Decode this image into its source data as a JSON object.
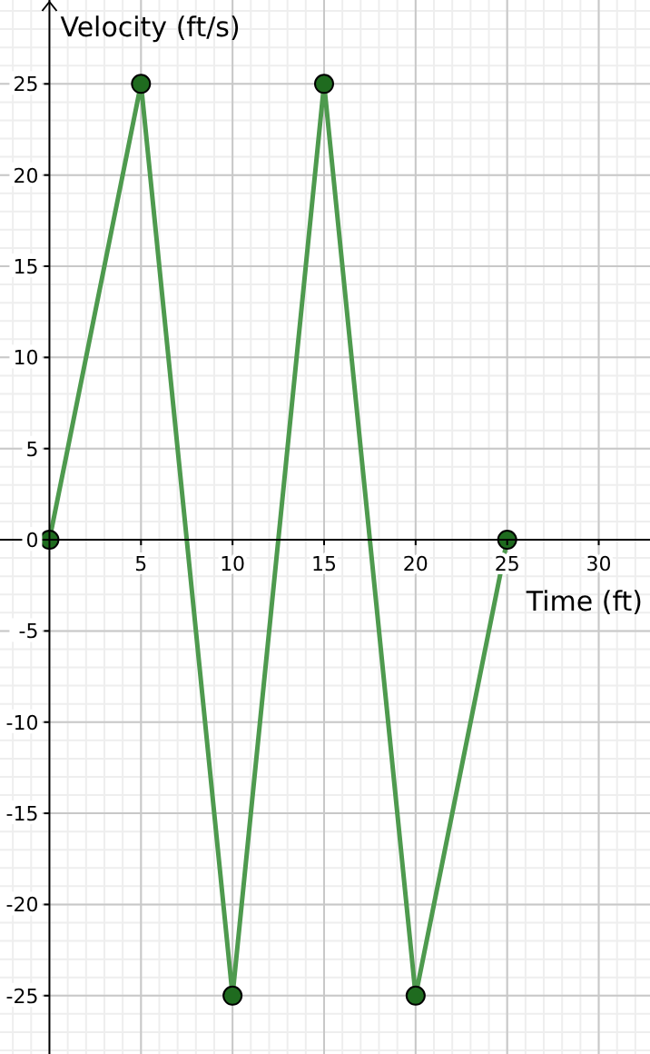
{
  "chart_data": {
    "type": "line",
    "xlabel": "Time (ft)",
    "ylabel": "Velocity (ft/s)",
    "x": [
      0,
      5,
      10,
      15,
      20,
      25
    ],
    "series": [
      {
        "color": "#4e9a4e",
        "values": [
          0,
          25,
          -25,
          25,
          -25,
          0
        ]
      }
    ],
    "xlim": [
      -2.7,
      32.8
    ],
    "ylim": [
      -28.2,
      29.6
    ],
    "xticks": [
      5,
      10,
      15,
      20,
      25,
      30
    ],
    "yticks": [
      -25,
      -20,
      -15,
      -10,
      -5,
      0,
      5,
      10,
      15,
      20,
      25
    ],
    "grid": true,
    "marker": "circle",
    "line_style": "solid"
  }
}
